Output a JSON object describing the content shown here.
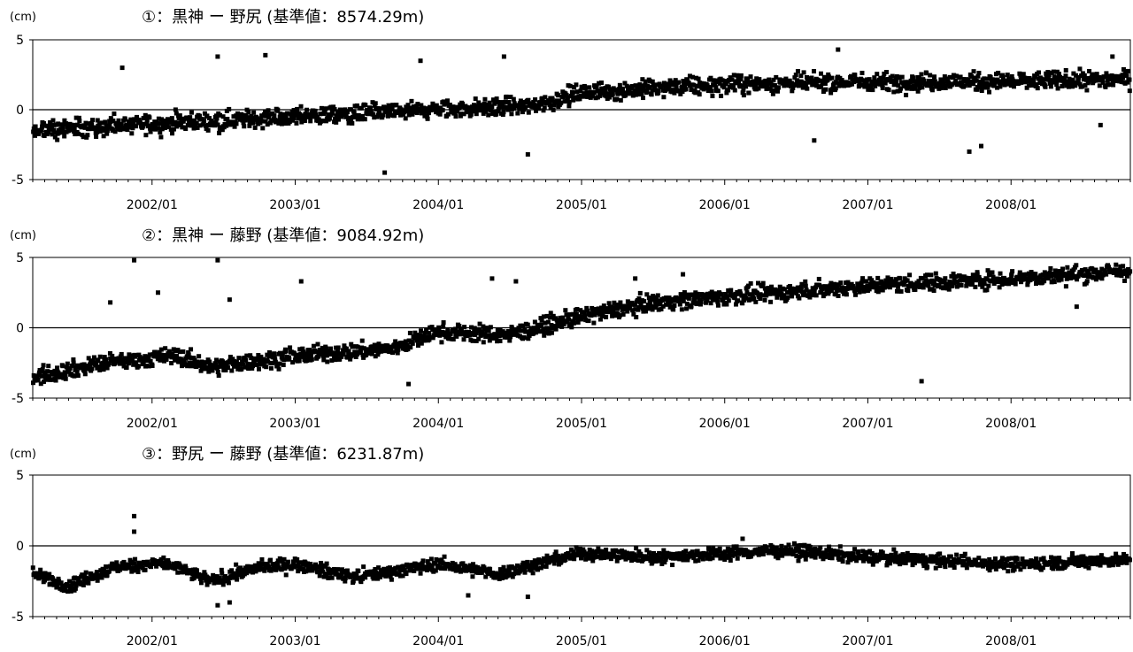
{
  "chart_data": [
    {
      "type": "scatter",
      "title": "①：黒神 ー 野尻 (基準値：8574.29m)",
      "unit_label": "(cm)",
      "ylim": [
        -5,
        5
      ],
      "y_ticks": [
        "5",
        "0",
        "-5"
      ],
      "x_range": [
        "2001-03",
        "2008-10"
      ],
      "x_ticks": [
        "2002/01",
        "2003/01",
        "2004/01",
        "2005/01",
        "2006/01",
        "2007/01",
        "2008/01"
      ],
      "trend": [
        {
          "x": "2001-03",
          "y": -1.5
        },
        {
          "x": "2002-01",
          "y": -1.0
        },
        {
          "x": "2003-01",
          "y": -0.5
        },
        {
          "x": "2004-01",
          "y": 0.0
        },
        {
          "x": "2004-09",
          "y": 0.3
        },
        {
          "x": "2005-01",
          "y": 1.2
        },
        {
          "x": "2006-01",
          "y": 1.8
        },
        {
          "x": "2007-01",
          "y": 2.0
        },
        {
          "x": "2008-01",
          "y": 2.0
        },
        {
          "x": "2008-10",
          "y": 2.2
        }
      ],
      "outliers": [
        {
          "x": "2001-10",
          "y": 3.0
        },
        {
          "x": "2002-06",
          "y": 3.8
        },
        {
          "x": "2002-10",
          "y": 3.9
        },
        {
          "x": "2003-08",
          "y": -4.5
        },
        {
          "x": "2003-11",
          "y": 3.5
        },
        {
          "x": "2004-06",
          "y": 3.8
        },
        {
          "x": "2004-08",
          "y": -3.2
        },
        {
          "x": "2006-08",
          "y": -2.2
        },
        {
          "x": "2006-10",
          "y": 4.3
        },
        {
          "x": "2007-09",
          "y": -3.0
        },
        {
          "x": "2007-10",
          "y": -2.6
        },
        {
          "x": "2008-09",
          "y": 3.8
        },
        {
          "x": "2008-08",
          "y": -1.1
        }
      ]
    },
    {
      "type": "scatter",
      "title": "②：黒神 ー 藤野 (基準値：9084.92m)",
      "unit_label": "(cm)",
      "ylim": [
        -5,
        5
      ],
      "y_ticks": [
        "5",
        "0",
        "-5"
      ],
      "x_range": [
        "2001-03",
        "2008-10"
      ],
      "x_ticks": [
        "2002/01",
        "2003/01",
        "2004/01",
        "2005/01",
        "2006/01",
        "2007/01",
        "2008/01"
      ],
      "trend": [
        {
          "x": "2001-03",
          "y": -3.5
        },
        {
          "x": "2001-09",
          "y": -2.5
        },
        {
          "x": "2002-03",
          "y": -2.0
        },
        {
          "x": "2002-06",
          "y": -2.8
        },
        {
          "x": "2003-01",
          "y": -2.0
        },
        {
          "x": "2003-09",
          "y": -1.5
        },
        {
          "x": "2004-01",
          "y": -0.3
        },
        {
          "x": "2004-07",
          "y": -0.5
        },
        {
          "x": "2005-01",
          "y": 0.8
        },
        {
          "x": "2005-07",
          "y": 1.8
        },
        {
          "x": "2006-01",
          "y": 2.2
        },
        {
          "x": "2007-01",
          "y": 3.0
        },
        {
          "x": "2008-01",
          "y": 3.5
        },
        {
          "x": "2008-10",
          "y": 4.0
        }
      ],
      "outliers": [
        {
          "x": "2001-09",
          "y": 1.8
        },
        {
          "x": "2001-11",
          "y": 4.8
        },
        {
          "x": "2002-01",
          "y": 2.5
        },
        {
          "x": "2002-06",
          "y": 4.8
        },
        {
          "x": "2002-07",
          "y": 2.0
        },
        {
          "x": "2003-01",
          "y": 3.3
        },
        {
          "x": "2003-10",
          "y": -4.0
        },
        {
          "x": "2004-05",
          "y": 3.5
        },
        {
          "x": "2004-07",
          "y": 3.3
        },
        {
          "x": "2005-05",
          "y": 3.5
        },
        {
          "x": "2005-09",
          "y": 3.8
        },
        {
          "x": "2007-05",
          "y": -3.8
        },
        {
          "x": "2008-06",
          "y": 1.5
        }
      ]
    },
    {
      "type": "scatter",
      "title": "③：野尻 ー 藤野 (基準値：6231.87m)",
      "unit_label": "(cm)",
      "ylim": [
        -5,
        5
      ],
      "y_ticks": [
        "5",
        "0",
        "-5"
      ],
      "x_range": [
        "2001-03",
        "2008-10"
      ],
      "x_ticks": [
        "2002/01",
        "2003/01",
        "2004/01",
        "2005/01",
        "2006/01",
        "2007/01",
        "2008/01"
      ],
      "trend": [
        {
          "x": "2001-03",
          "y": -2.0
        },
        {
          "x": "2001-06",
          "y": -2.8
        },
        {
          "x": "2001-10",
          "y": -1.5
        },
        {
          "x": "2002-02",
          "y": -1.2
        },
        {
          "x": "2002-06",
          "y": -2.5
        },
        {
          "x": "2002-10",
          "y": -1.5
        },
        {
          "x": "2003-01",
          "y": -1.3
        },
        {
          "x": "2003-06",
          "y": -2.2
        },
        {
          "x": "2004-01",
          "y": -1.3
        },
        {
          "x": "2004-06",
          "y": -2.0
        },
        {
          "x": "2005-01",
          "y": -0.5
        },
        {
          "x": "2005-07",
          "y": -0.8
        },
        {
          "x": "2006-06",
          "y": -0.3
        },
        {
          "x": "2007-01",
          "y": -0.8
        },
        {
          "x": "2008-01",
          "y": -1.3
        },
        {
          "x": "2008-10",
          "y": -1.0
        }
      ],
      "outliers": [
        {
          "x": "2001-11",
          "y": 2.1
        },
        {
          "x": "2001-11",
          "y": 1.0
        },
        {
          "x": "2002-06",
          "y": -4.2
        },
        {
          "x": "2002-07",
          "y": -4.0
        },
        {
          "x": "2004-03",
          "y": -3.5
        },
        {
          "x": "2004-08",
          "y": -3.6
        },
        {
          "x": "2006-02",
          "y": 0.5
        }
      ]
    }
  ]
}
